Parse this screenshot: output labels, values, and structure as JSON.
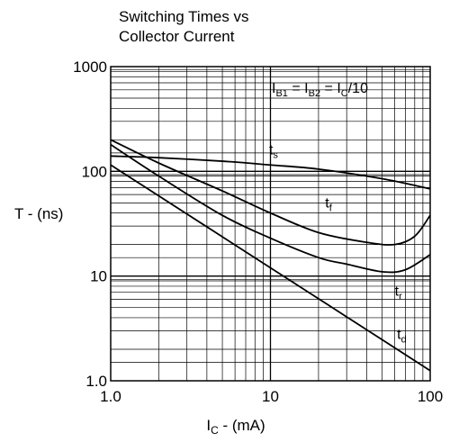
{
  "chart_data": {
    "type": "line",
    "title_lines": [
      "Switching Times vs",
      "Collector Current"
    ],
    "xlabel": "I",
    "xlabel_sub": "C",
    "xlabel_suffix": " - (mA)",
    "ylabel": "T - (ns)",
    "x_scale": "log",
    "y_scale": "log",
    "xlim": [
      1,
      100
    ],
    "ylim": [
      1,
      1000
    ],
    "grid": true,
    "x_ticks": [
      {
        "value": 1,
        "label": "1.0"
      },
      {
        "value": 10,
        "label": "10"
      },
      {
        "value": 100,
        "label": "100"
      }
    ],
    "y_ticks": [
      {
        "value": 1,
        "label": "1.0"
      },
      {
        "value": 10,
        "label": "10"
      },
      {
        "value": 100,
        "label": "100"
      },
      {
        "value": 1000,
        "label": "1000"
      }
    ],
    "condition": {
      "parts": [
        {
          "t": "I"
        },
        {
          "t": "B1",
          "sub": true
        },
        {
          "t": " = I"
        },
        {
          "t": "B2",
          "sub": true
        },
        {
          "t": " = I"
        },
        {
          "t": "C",
          "sub": true
        },
        {
          "t": "/10"
        }
      ]
    },
    "series": [
      {
        "label": "t",
        "sub": "s",
        "points": [
          [
            1,
            140
          ],
          [
            2,
            135
          ],
          [
            5,
            125
          ],
          [
            10,
            115
          ],
          [
            20,
            105
          ],
          [
            50,
            85
          ],
          [
            100,
            68
          ]
        ]
      },
      {
        "label": "t",
        "sub": "f",
        "points": [
          [
            1,
            200
          ],
          [
            2,
            120
          ],
          [
            5,
            65
          ],
          [
            10,
            40
          ],
          [
            20,
            26
          ],
          [
            40,
            21
          ],
          [
            60,
            20
          ],
          [
            80,
            24
          ],
          [
            100,
            38
          ]
        ]
      },
      {
        "label": "t",
        "sub": "r",
        "points": [
          [
            1,
            180
          ],
          [
            2,
            90
          ],
          [
            5,
            38
          ],
          [
            10,
            23
          ],
          [
            20,
            15
          ],
          [
            30,
            13
          ],
          [
            50,
            11
          ],
          [
            70,
            11.5
          ],
          [
            100,
            16
          ]
        ]
      },
      {
        "label": "t",
        "sub": "d",
        "points": [
          [
            1,
            115
          ],
          [
            10,
            12
          ],
          [
            100,
            1.25
          ]
        ]
      }
    ],
    "annotations": [
      {
        "series": 0,
        "x": 9.8,
        "y": 145
      },
      {
        "series": 1,
        "x": 22,
        "y": 45
      },
      {
        "series": 2,
        "x": 60,
        "y": 6.5
      },
      {
        "series": 3,
        "x": 62,
        "y": 2.5
      }
    ]
  }
}
